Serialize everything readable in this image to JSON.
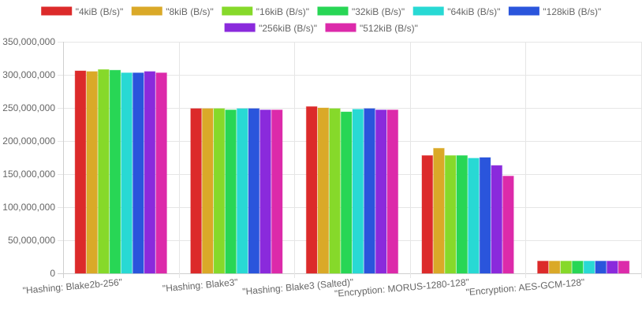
{
  "chart_data": {
    "type": "bar",
    "categories": [
      "\"Hashing: Blake2b-256\"",
      "\"Hashing: Blake3\"",
      "\"Hashing: Blake3 (Salted)\"",
      "\"Encryption: MORUS-1280-128\"",
      "\"Encryption: AES-GCM-128\""
    ],
    "series": [
      {
        "name": "\"4kiB (B/s)\"",
        "color": "#dc2a2a",
        "values": [
          306000000,
          249000000,
          252000000,
          178000000,
          18500000
        ]
      },
      {
        "name": "\"8kiB (B/s)\"",
        "color": "#daa928",
        "values": [
          305000000,
          249000000,
          250000000,
          189000000,
          18500000
        ]
      },
      {
        "name": "\"16kiB (B/s)\"",
        "color": "#86d92a",
        "values": [
          308000000,
          249000000,
          249000000,
          178000000,
          18500000
        ]
      },
      {
        "name": "\"32kiB (B/s)\"",
        "color": "#28d655",
        "values": [
          307000000,
          247000000,
          244000000,
          178000000,
          18500000
        ]
      },
      {
        "name": "\"64kiB (B/s)\"",
        "color": "#28d9d4",
        "values": [
          303000000,
          249000000,
          248000000,
          174000000,
          18500000
        ]
      },
      {
        "name": "\"128kiB (B/s)\"",
        "color": "#2a55dc",
        "values": [
          303000000,
          249000000,
          249000000,
          175000000,
          18500000
        ]
      },
      {
        "name": "\"256kiB (B/s)\"",
        "color": "#8a2adc",
        "values": [
          305000000,
          247000000,
          247000000,
          163000000,
          18500000
        ]
      },
      {
        "name": "\"512kiB (B/s)\"",
        "color": "#dc2aaa",
        "values": [
          303000000,
          247000000,
          247000000,
          147000000,
          18500000
        ]
      }
    ],
    "y_ticks": [
      "0",
      "50,000,000",
      "100,000,000",
      "150,000,000",
      "200,000,000",
      "250,000,000",
      "300,000,000",
      "350,000,000"
    ],
    "ylim": [
      0,
      350000000
    ],
    "grid": true,
    "legend_position": "top"
  }
}
